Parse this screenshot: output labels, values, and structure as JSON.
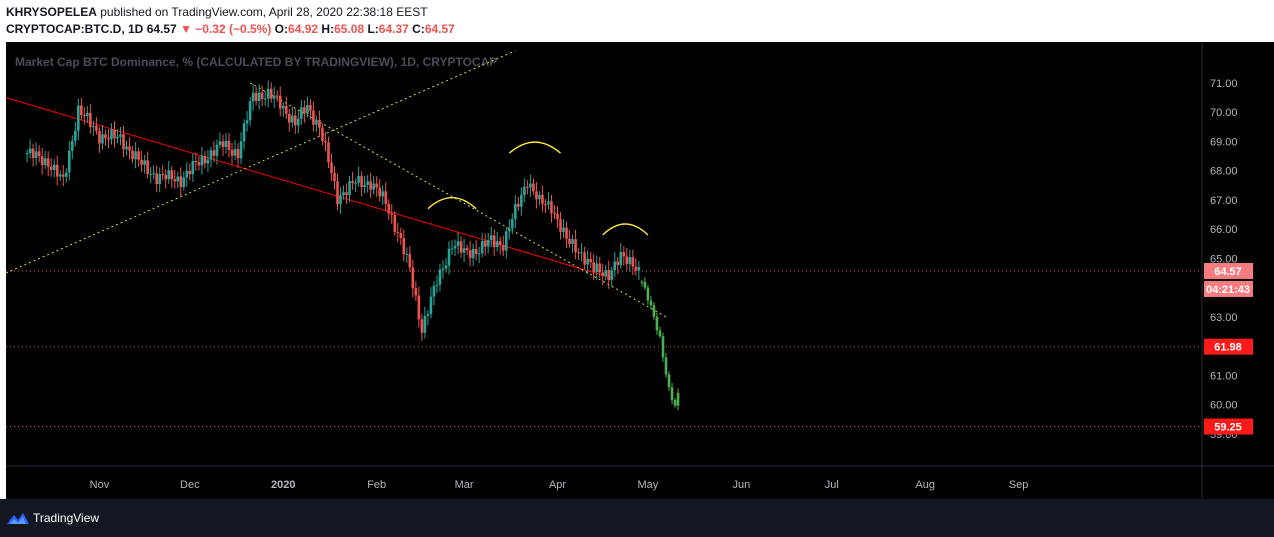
{
  "header": {
    "publisher": "KHRYSOPELEA",
    "published_text": "published on TradingView.com, April 28, 2020 22:38:18 EEST",
    "symbol": "CRYPTOCAP:BTC.D, 1D",
    "last": "64.57",
    "change": "▼ −0.32 (−0.5%)",
    "o_label": "O:",
    "o_val": "64.92",
    "h_label": "H:",
    "h_val": "65.08",
    "l_label": "L:",
    "l_val": "64.37",
    "c_label": "C:",
    "c_val": "64.57"
  },
  "footer": {
    "brand": "TradingView"
  },
  "colors": {
    "up": "#26a69a",
    "down": "#ef5350",
    "projection": "#4caf50",
    "trendline": "#ff0000",
    "dotted": "#cddc39",
    "arc": "#ffeb3b",
    "level": "#ef5350",
    "axis_text": "#b2b5be"
  },
  "chart_data": {
    "type": "candlestick",
    "title": "Market Cap BTC Dominance, % (CALCULATED BY TRADINGVIEW), 1D, CRYPTOCAP",
    "y_ticks": [
      "71.00",
      "70.00",
      "69.00",
      "68.00",
      "67.00",
      "66.00",
      "65.00",
      "63.00",
      "61.00",
      "60.00"
    ],
    "y_partial_tick": "59.00",
    "x_ticks": [
      "Nov",
      "Dec",
      "2020",
      "Feb",
      "Mar",
      "Apr",
      "May",
      "Jun",
      "Jul",
      "Aug",
      "Sep"
    ],
    "ylim": [
      57.9,
      72.4
    ],
    "price_labels": [
      {
        "value": 64.57,
        "text": "64.57"
      },
      {
        "value": 64.57,
        "text": "04:21:43",
        "countdown": true
      },
      {
        "value": 61.98,
        "text": "61.98"
      },
      {
        "value": 59.25,
        "text": "59.25"
      }
    ],
    "horizontal_levels": [
      64.57,
      61.98,
      59.25
    ],
    "close_path": [
      [
        "2019-10-08",
        68.6
      ],
      [
        "2019-10-15",
        68.3
      ],
      [
        "2019-10-20",
        67.6
      ],
      [
        "2019-10-25",
        70.1
      ],
      [
        "2019-11-01",
        69.2
      ],
      [
        "2019-11-08",
        69.1
      ],
      [
        "2019-11-15",
        68.2
      ],
      [
        "2019-11-20",
        67.8
      ],
      [
        "2019-11-28",
        67.7
      ],
      [
        "2019-12-03",
        68.2
      ],
      [
        "2019-12-08",
        68.6
      ],
      [
        "2019-12-12",
        68.9
      ],
      [
        "2019-12-17",
        68.6
      ],
      [
        "2019-12-22",
        70.6
      ],
      [
        "2019-12-27",
        70.6
      ],
      [
        "2019-12-31",
        70.3
      ],
      [
        "2020-01-05",
        69.6
      ],
      [
        "2020-01-09",
        70.2
      ],
      [
        "2020-01-13",
        69.5
      ],
      [
        "2020-01-16",
        68.3
      ],
      [
        "2020-01-19",
        67.1
      ],
      [
        "2020-01-25",
        67.6
      ],
      [
        "2020-01-30",
        67.6
      ],
      [
        "2020-02-04",
        66.9
      ],
      [
        "2020-02-08",
        65.9
      ],
      [
        "2020-02-12",
        64.6
      ],
      [
        "2020-02-16",
        62.6
      ],
      [
        "2020-02-21",
        64.2
      ],
      [
        "2020-02-26",
        65.5
      ],
      [
        "2020-03-01",
        65.2
      ],
      [
        "2020-03-06",
        65.3
      ],
      [
        "2020-03-10",
        65.6
      ],
      [
        "2020-03-14",
        65.5
      ],
      [
        "2020-03-18",
        66.6
      ],
      [
        "2020-03-22",
        67.7
      ],
      [
        "2020-03-26",
        66.9
      ],
      [
        "2020-03-30",
        66.8
      ],
      [
        "2020-04-04",
        65.6
      ],
      [
        "2020-04-08",
        65.3
      ],
      [
        "2020-04-13",
        64.6
      ],
      [
        "2020-04-18",
        64.5
      ],
      [
        "2020-04-22",
        65.0
      ],
      [
        "2020-04-26",
        64.9
      ],
      [
        "2020-04-28",
        64.57
      ]
    ],
    "projection_path": [
      [
        "2020-04-29",
        64.2
      ],
      [
        "2020-05-02",
        63.3
      ],
      [
        "2020-05-05",
        62.3
      ],
      [
        "2020-05-08",
        60.5
      ],
      [
        "2020-05-10",
        59.9
      ],
      [
        "2020-05-11",
        60.3
      ]
    ],
    "trendlines": [
      {
        "kind": "solid",
        "from": [
          "2019-10-01",
          70.5
        ],
        "to": [
          "2020-04-20",
          64.3
        ]
      },
      {
        "kind": "dotted",
        "from": [
          "2019-10-01",
          64.5
        ],
        "to": [
          "2020-03-18",
          72.1
        ]
      },
      {
        "kind": "dotted",
        "from": [
          "2019-12-21",
          71.0
        ],
        "to": [
          "2020-05-07",
          63.0
        ]
      }
    ],
    "arcs": [
      {
        "from": "2020-02-18",
        "to": "2020-03-05",
        "value": 66.7
      },
      {
        "from": "2020-03-16",
        "to": "2020-04-02",
        "value": 68.6
      },
      {
        "from": "2020-04-16",
        "to": "2020-05-01",
        "value": 65.8
      }
    ]
  }
}
